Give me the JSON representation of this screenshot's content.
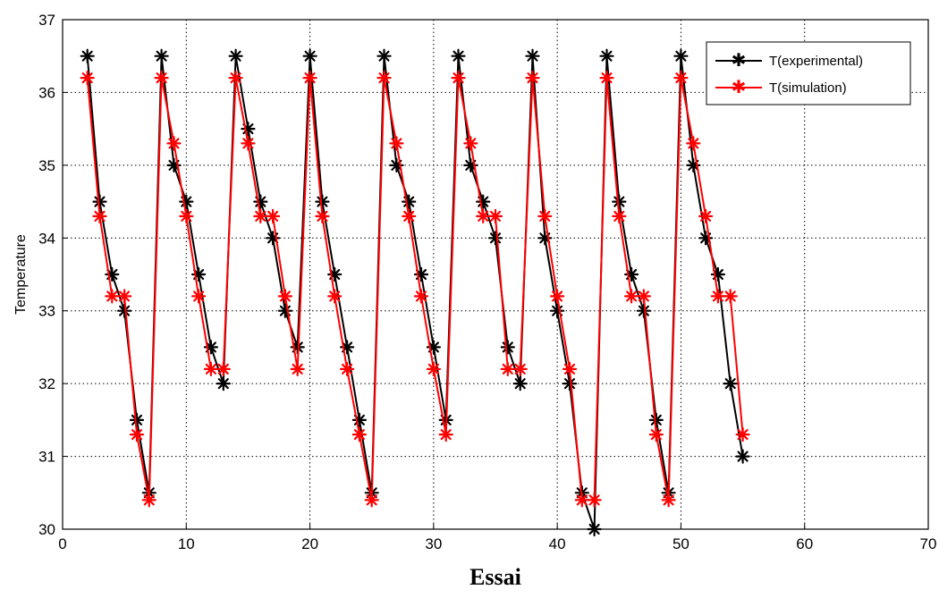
{
  "chart_data": {
    "type": "line",
    "title": "",
    "xlabel": "Essai",
    "ylabel": "Temperature",
    "xlim": [
      0,
      70
    ],
    "ylim": [
      30,
      37
    ],
    "xticks": [
      0,
      10,
      20,
      30,
      40,
      50,
      60,
      70
    ],
    "yticks": [
      30,
      31,
      32,
      33,
      34,
      35,
      36,
      37
    ],
    "grid": true,
    "legend_position": "top-right",
    "x": [
      2,
      3,
      4,
      5,
      6,
      7,
      8,
      9,
      10,
      11,
      12,
      13,
      14,
      15,
      16,
      17,
      18,
      19,
      20,
      21,
      22,
      23,
      24,
      25,
      26,
      27,
      28,
      29,
      30,
      31,
      32,
      33,
      34,
      35,
      36,
      37,
      38,
      39,
      40,
      41,
      42,
      43,
      44,
      45,
      46,
      47,
      48,
      49,
      50,
      51,
      52,
      53,
      54,
      55
    ],
    "series": [
      {
        "name": "T(experimental)",
        "color": "#000000",
        "marker": "asterisk",
        "values": [
          36.5,
          34.5,
          33.5,
          33.0,
          31.5,
          30.5,
          36.5,
          35.0,
          34.5,
          33.5,
          32.5,
          32.0,
          36.5,
          35.5,
          34.5,
          34.0,
          33.0,
          32.5,
          36.5,
          34.5,
          33.5,
          32.5,
          31.5,
          30.5,
          36.5,
          35.0,
          34.5,
          33.5,
          32.5,
          31.5,
          36.5,
          35.0,
          34.5,
          34.0,
          32.5,
          32.0,
          36.5,
          34.0,
          33.0,
          32.0,
          30.5,
          30.0,
          36.5,
          34.5,
          33.5,
          33.0,
          31.5,
          30.5,
          36.5,
          35.0,
          34.0,
          33.5,
          32.0,
          31.0
        ]
      },
      {
        "name": "T(simulation)",
        "color": "#ff0000",
        "marker": "asterisk",
        "values": [
          36.2,
          34.3,
          33.2,
          33.2,
          31.3,
          30.4,
          36.2,
          35.3,
          34.3,
          33.2,
          32.2,
          32.2,
          36.2,
          35.3,
          34.3,
          34.3,
          33.2,
          32.2,
          36.2,
          34.3,
          33.2,
          32.2,
          31.3,
          30.4,
          36.2,
          35.3,
          34.3,
          33.2,
          32.2,
          31.3,
          36.2,
          35.3,
          34.3,
          34.3,
          32.2,
          32.2,
          36.2,
          34.3,
          33.2,
          32.2,
          30.4,
          30.4,
          36.2,
          34.3,
          33.2,
          33.2,
          31.3,
          30.4,
          36.2,
          35.3,
          34.3,
          33.2,
          33.2,
          31.3
        ]
      }
    ]
  }
}
